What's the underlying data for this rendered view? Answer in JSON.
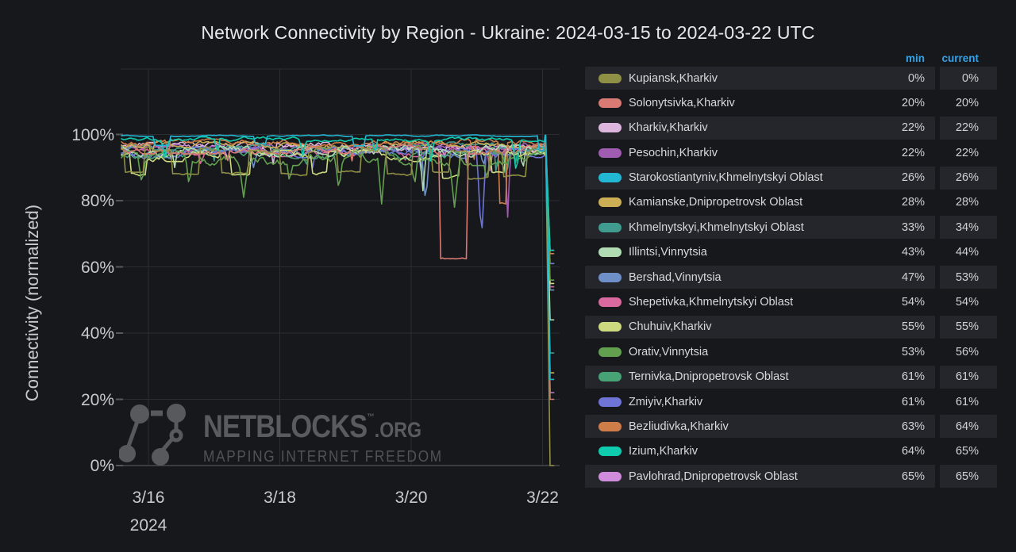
{
  "title": "Network Connectivity by Region - Ukraine: 2024-03-15 to 2024-03-22 UTC",
  "colors": {
    "background": "#17181c",
    "grid": "#2b2d32",
    "axis_line": "#46484c",
    "tick_mark": "#55575a",
    "axis_text": "#c9cacd",
    "title_text": "#e6e7e9",
    "legend_header": "#35a2e8",
    "legend_row_bg": "#24262b",
    "watermark": "#5a5b5e"
  },
  "legend": {
    "min_label": "min",
    "current_label": "current"
  },
  "watermark": {
    "brand": "NETBLOCKS",
    "tm": "TM",
    "suffix": ".ORG",
    "tagline": "MAPPING INTERNET FREEDOM"
  },
  "chart_data": {
    "type": "line",
    "title": "Network Connectivity by Region - Ukraine: 2024-03-15 to 2024-03-22 UTC",
    "xlabel": "",
    "ylabel": "Connectivity (normalized)",
    "x_axis_year": "2024",
    "x_domain_days_since_2024_03_15": [
      0.59,
      7.17
    ],
    "ylim_pct": [
      0,
      120
    ],
    "grid": true,
    "legend_position": "right-table",
    "y_ticks": [
      {
        "v": 0,
        "label": "0%"
      },
      {
        "v": 20,
        "label": "20%"
      },
      {
        "v": 40,
        "label": "40%"
      },
      {
        "v": 60,
        "label": "60%"
      },
      {
        "v": 80,
        "label": "80%"
      },
      {
        "v": 100,
        "label": "100%"
      }
    ],
    "x_ticks": [
      {
        "t": 1,
        "label": "3/16"
      },
      {
        "t": 3,
        "label": "3/18"
      },
      {
        "t": 5,
        "label": "3/20"
      },
      {
        "t": 7,
        "label": "3/22"
      }
    ],
    "end_drop": {
      "start_t": 7.05,
      "end_t": 7.115,
      "tail_t": 7.17
    },
    "z_order": [
      16,
      2,
      9,
      3,
      8,
      12,
      6,
      5,
      13,
      14,
      7,
      10,
      11,
      1,
      0,
      15,
      4
    ],
    "series": [
      {
        "name": "Kupiansk,Kharkiv",
        "color": "#8f8f45",
        "min_pct": 0,
        "current_pct": 0,
        "base": 95.5,
        "noise": 1.2,
        "seed": 11,
        "dips": [
          [
            0.78,
            0.3,
            88.5,
            2
          ],
          [
            1.55,
            0.42,
            88,
            2
          ],
          [
            2.32,
            0.4,
            88.5,
            2
          ],
          [
            3.2,
            0.42,
            88,
            2
          ],
          [
            4.05,
            0.36,
            88.5,
            2
          ],
          [
            4.82,
            0.4,
            88,
            2
          ],
          [
            5.45,
            0.26,
            89,
            2
          ],
          [
            6.02,
            0.32,
            87,
            2
          ],
          [
            6.58,
            0.36,
            87.5,
            2
          ]
        ]
      },
      {
        "name": "Solonytsivka,Kharkiv",
        "color": "#d97a74",
        "min_pct": 20,
        "current_pct": 20,
        "base": 95.5,
        "noise": 1.4,
        "seed": 22,
        "dips": [
          [
            2.2,
            0.08,
            91,
            1
          ],
          [
            4.1,
            0.06,
            92,
            1
          ],
          [
            5.65,
            0.42,
            63,
            2
          ]
        ]
      },
      {
        "name": "Kharkiv,Kharkiv",
        "color": "#ddb6de",
        "min_pct": 22,
        "current_pct": 22,
        "base": 96.2,
        "noise": 1.4,
        "seed": 33,
        "dips": [
          [
            2.9,
            0.08,
            91,
            1
          ],
          [
            5.5,
            0.06,
            92,
            1
          ]
        ]
      },
      {
        "name": "Pesochin,Kharkiv",
        "color": "#a05cb0",
        "min_pct": 22,
        "current_pct": 22,
        "base": 96.0,
        "noise": 1.4,
        "seed": 44,
        "dips": [
          [
            3.0,
            0.06,
            92,
            1
          ],
          [
            6.47,
            0.09,
            75,
            1
          ]
        ]
      },
      {
        "name": "Starokostiantyniv,Khmelnytskyi Oblast",
        "color": "#22b8d3",
        "min_pct": 26,
        "current_pct": 26,
        "base": 99.6,
        "noise": 0.25,
        "seed": 55,
        "dips": [
          [
            1.2,
            0.25,
            96.8,
            2
          ],
          [
            2.7,
            0.2,
            97.2,
            2
          ],
          [
            4.2,
            0.2,
            96.6,
            2
          ],
          [
            6.98,
            0.1,
            95,
            2
          ]
        ]
      },
      {
        "name": "Kamianske,Dnipropetrovsk Oblast",
        "color": "#ccae54",
        "min_pct": 28,
        "current_pct": 28,
        "base": 97.2,
        "noise": 1.1,
        "seed": 66,
        "dips": [
          [
            1.05,
            0.06,
            92.5,
            1
          ],
          [
            4.3,
            0.06,
            93,
            1
          ]
        ]
      },
      {
        "name": "Khmelnytskyi,Khmelnytskyi Oblast",
        "color": "#3f9c8f",
        "min_pct": 33,
        "current_pct": 34,
        "base": 96.5,
        "noise": 1.2,
        "seed": 77,
        "dips": [
          [
            2.0,
            0.06,
            92,
            1
          ],
          [
            6.3,
            0.07,
            86,
            1
          ],
          [
            6.6,
            0.05,
            88,
            1
          ]
        ]
      },
      {
        "name": "Illintsi,Vinnytsia",
        "color": "#b0dcb4",
        "min_pct": 43,
        "current_pct": 44,
        "base": 95.0,
        "noise": 1.8,
        "seed": 88,
        "dips": [
          [
            1.4,
            0.08,
            90,
            1
          ],
          [
            5.18,
            0.1,
            83,
            1
          ],
          [
            6.7,
            0.08,
            89,
            1
          ]
        ]
      },
      {
        "name": "Bershad,Vinnytsia",
        "color": "#6e8fc7",
        "min_pct": 47,
        "current_pct": 53,
        "base": 94.5,
        "noise": 1.7,
        "seed": 99,
        "dips": [
          [
            2.6,
            0.1,
            90,
            1
          ],
          [
            5.22,
            0.12,
            79,
            1
          ],
          [
            6.1,
            0.08,
            90,
            1
          ]
        ]
      },
      {
        "name": "Shepetivka,Khmelnytskyi Oblast",
        "color": "#d9699e",
        "min_pct": 54,
        "current_pct": 54,
        "base": 94.8,
        "noise": 1.5,
        "seed": 111,
        "dips": [
          [
            1.8,
            0.08,
            90,
            1
          ],
          [
            4.9,
            0.06,
            91,
            1
          ],
          [
            6.2,
            0.08,
            89,
            1
          ]
        ]
      },
      {
        "name": "Chuhuiv,Kharkiv",
        "color": "#cdd97f",
        "min_pct": 55,
        "current_pct": 55,
        "base": 93.5,
        "noise": 1.7,
        "seed": 122,
        "dips": [
          [
            0.85,
            0.25,
            88,
            2
          ],
          [
            2.4,
            0.3,
            87.5,
            2
          ],
          [
            3.6,
            0.25,
            88.5,
            2
          ],
          [
            5.6,
            0.3,
            87,
            2
          ],
          [
            6.32,
            0.2,
            88,
            2
          ]
        ]
      },
      {
        "name": "Orativ,Vinnytsia",
        "color": "#62a050",
        "min_pct": 53,
        "current_pct": 56,
        "base": 92.8,
        "noise": 2.2,
        "seed": 133,
        "dips": [
          [
            0.9,
            0.12,
            85,
            1
          ],
          [
            1.62,
            0.1,
            84,
            1
          ],
          [
            2.45,
            0.16,
            81,
            1
          ],
          [
            3.15,
            0.1,
            85,
            1
          ],
          [
            3.9,
            0.12,
            83,
            1
          ],
          [
            4.55,
            0.12,
            79,
            1
          ],
          [
            5.05,
            0.1,
            84,
            1
          ],
          [
            5.66,
            0.16,
            78,
            1
          ],
          [
            6.15,
            0.1,
            86,
            1
          ]
        ]
      },
      {
        "name": "Ternivka,Dnipropetrovsk Oblast",
        "color": "#47a275",
        "min_pct": 61,
        "current_pct": 61,
        "base": 94.2,
        "noise": 1.5,
        "seed": 144,
        "dips": [
          [
            3.4,
            0.08,
            90,
            1
          ],
          [
            6.45,
            0.1,
            87,
            1
          ]
        ]
      },
      {
        "name": "Zmiyiv,Kharkiv",
        "color": "#6e75d6",
        "min_pct": 61,
        "current_pct": 61,
        "base": 94.6,
        "noise": 1.6,
        "seed": 155,
        "dips": [
          [
            3.5,
            0.08,
            90,
            1
          ],
          [
            5.15,
            0.08,
            89,
            1
          ],
          [
            6.07,
            0.14,
            68,
            1
          ]
        ]
      },
      {
        "name": "Bezliudivka,Kharkiv",
        "color": "#ce7c48",
        "min_pct": 63,
        "current_pct": 64,
        "base": 97.5,
        "noise": 1.1,
        "seed": 166,
        "dips": [
          [
            1.3,
            0.05,
            93,
            1
          ],
          [
            5.95,
            0.06,
            90,
            1
          ],
          [
            6.38,
            0.12,
            79,
            2
          ]
        ]
      },
      {
        "name": "Izium,Kharkiv",
        "color": "#0fccae",
        "min_pct": 64,
        "current_pct": 65,
        "base": 98.6,
        "noise": 0.7,
        "seed": 177,
        "dips": [
          [
            1.25,
            0.1,
            93,
            1
          ],
          [
            2.05,
            0.08,
            94,
            1
          ],
          [
            3.35,
            0.1,
            93.5,
            1
          ],
          [
            4.45,
            0.08,
            94,
            1
          ],
          [
            5.3,
            0.1,
            92,
            1
          ],
          [
            6.6,
            0.12,
            88,
            1
          ]
        ]
      },
      {
        "name": "Pavlohrad,Dnipropetrovsk Oblast",
        "color": "#cf8cdb",
        "min_pct": 65,
        "current_pct": 65,
        "base": 95.8,
        "noise": 1.4,
        "seed": 188,
        "dips": [
          [
            2.2,
            0.06,
            91,
            1
          ],
          [
            5.85,
            0.08,
            90,
            1
          ]
        ]
      }
    ]
  }
}
